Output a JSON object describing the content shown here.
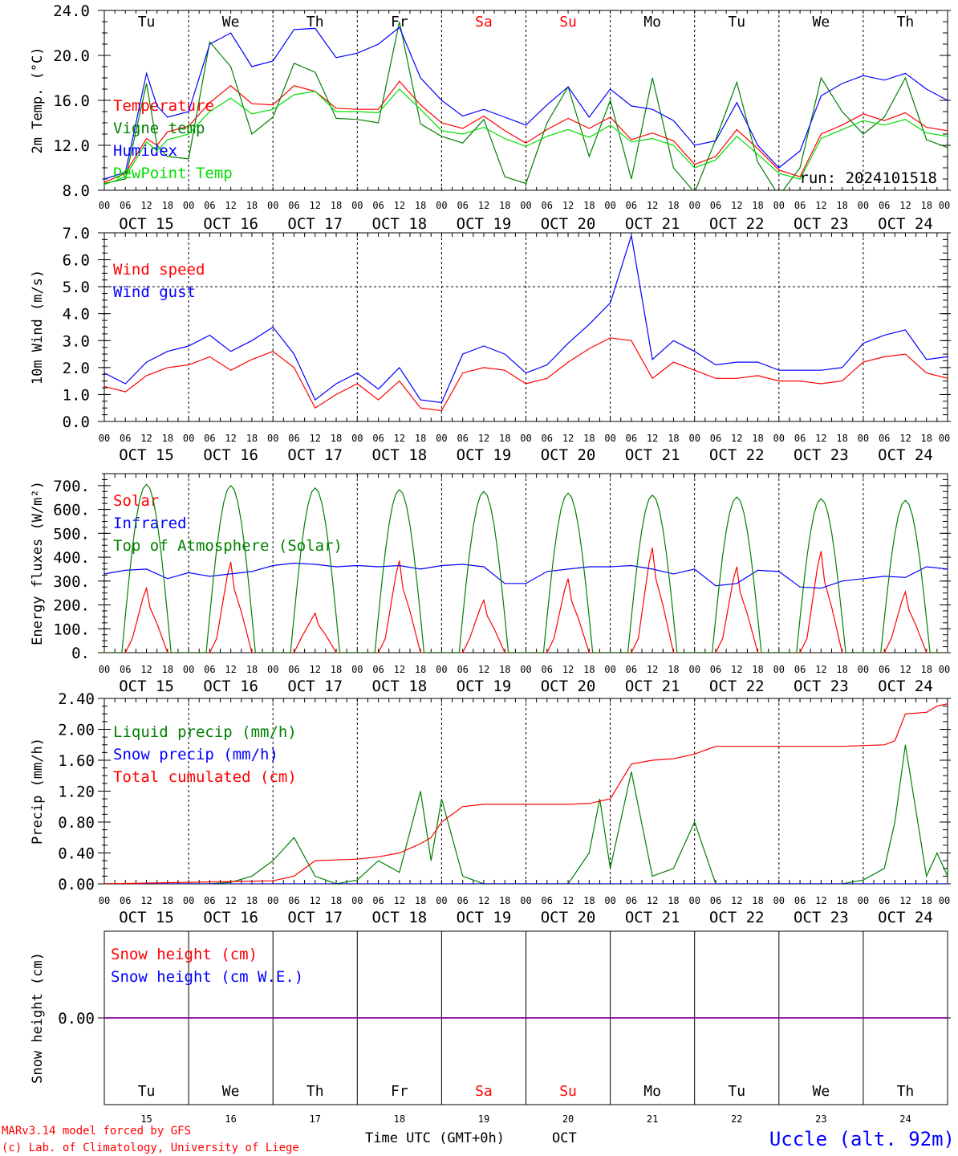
{
  "colors": {
    "red": "#ff0000",
    "green": "#008000",
    "blue": "#0000ff",
    "lime": "#00dd00",
    "purple": "#8000a0",
    "black": "#000000"
  },
  "days": [
    {
      "abbr": "Tu",
      "date": "OCT 15",
      "num": "15",
      "weekend": false
    },
    {
      "abbr": "We",
      "date": "OCT 16",
      "num": "16",
      "weekend": false
    },
    {
      "abbr": "Th",
      "date": "OCT 17",
      "num": "17",
      "weekend": false
    },
    {
      "abbr": "Fr",
      "date": "OCT 18",
      "num": "18",
      "weekend": false
    },
    {
      "abbr": "Sa",
      "date": "OCT 19",
      "num": "19",
      "weekend": true
    },
    {
      "abbr": "Su",
      "date": "OCT 20",
      "num": "20",
      "weekend": true
    },
    {
      "abbr": "Mo",
      "date": "OCT 21",
      "num": "21",
      "weekend": false
    },
    {
      "abbr": "Tu",
      "date": "OCT 22",
      "num": "22",
      "weekend": false
    },
    {
      "abbr": "We",
      "date": "OCT 23",
      "num": "23",
      "weekend": false
    },
    {
      "abbr": "Th",
      "date": "OCT 24",
      "num": "24",
      "weekend": false
    }
  ],
  "hour_ticks": [
    "00",
    "06",
    "12",
    "18"
  ],
  "run_label": "run: 2024101518",
  "footer": {
    "model": "MARv3.14 model forced by GFS",
    "lab": "(c) Lab. of Climatology, University of Liege",
    "xlabel": "Time UTC (GMT+0h)",
    "month": "OCT",
    "station": "Uccle (alt. 92m)"
  },
  "chart_data": [
    {
      "type": "line",
      "ylabel": "2m Temp. (°C)",
      "ylim": [
        8,
        24
      ],
      "yticks": [
        "8.0",
        "12.0",
        "16.0",
        "20.0",
        "24.0"
      ],
      "x_unit": "hours since OCT 15 00 UTC",
      "series": [
        {
          "name": "Temperature",
          "color": "red",
          "x": [
            0,
            6,
            12,
            15,
            18,
            24,
            30,
            36,
            42,
            48,
            54,
            60,
            66,
            72,
            78,
            84,
            90,
            96,
            102,
            108,
            114,
            120,
            126,
            132,
            138,
            144,
            150,
            156,
            162,
            168,
            174,
            180,
            186,
            192,
            198,
            204,
            210,
            216,
            222,
            228,
            234,
            240
          ],
          "y": [
            8.7,
            9.5,
            12.6,
            12.0,
            13.2,
            13.7,
            15.8,
            17.3,
            15.7,
            15.6,
            17.3,
            16.8,
            15.3,
            15.2,
            15.2,
            17.7,
            15.6,
            14.0,
            13.5,
            14.6,
            13.3,
            12.2,
            13.4,
            14.4,
            13.5,
            14.5,
            12.5,
            13.1,
            12.4,
            10.3,
            11.0,
            13.4,
            11.7,
            9.8,
            9.2,
            13.0,
            13.8,
            14.8,
            14.2,
            14.9,
            13.6,
            13.3
          ]
        },
        {
          "name": "Vigne temp",
          "color": "green",
          "x": [
            0,
            6,
            12,
            15,
            18,
            24,
            30,
            36,
            42,
            48,
            54,
            60,
            66,
            72,
            78,
            84,
            90,
            96,
            102,
            108,
            114,
            120,
            126,
            132,
            138,
            144,
            150,
            156,
            162,
            168,
            174,
            180,
            186,
            192,
            198,
            204,
            210,
            216,
            222,
            228,
            234,
            240
          ],
          "y": [
            8.6,
            9.0,
            17.5,
            12.0,
            11.0,
            10.8,
            21.2,
            19.0,
            13.0,
            14.5,
            19.3,
            18.5,
            14.4,
            14.3,
            14.0,
            23.0,
            13.9,
            12.8,
            12.2,
            14.3,
            9.2,
            8.6,
            14.0,
            17.2,
            11.0,
            16.0,
            9.0,
            18.0,
            10.0,
            7.8,
            12.5,
            17.6,
            10.5,
            7.5,
            10.0,
            18.0,
            15.0,
            13.0,
            14.5,
            18.0,
            12.5,
            11.8
          ]
        },
        {
          "name": "Humidex",
          "color": "blue",
          "x": [
            0,
            6,
            12,
            15,
            18,
            24,
            30,
            36,
            42,
            48,
            54,
            60,
            66,
            72,
            78,
            84,
            90,
            96,
            102,
            108,
            114,
            120,
            126,
            132,
            138,
            144,
            150,
            156,
            162,
            168,
            174,
            180,
            186,
            192,
            198,
            204,
            210,
            216,
            222,
            228,
            234,
            240
          ],
          "y": [
            9.0,
            9.6,
            18.4,
            15.5,
            14.5,
            15.0,
            21.0,
            22.0,
            19.0,
            19.5,
            22.3,
            22.4,
            19.8,
            20.2,
            21.0,
            22.5,
            18.0,
            16.0,
            14.6,
            15.2,
            14.5,
            13.8,
            15.6,
            17.2,
            14.5,
            17.0,
            15.5,
            15.2,
            14.2,
            12.0,
            12.4,
            15.8,
            12.0,
            10.0,
            11.5,
            16.4,
            17.5,
            18.2,
            17.8,
            18.4,
            17.0,
            16.0
          ]
        },
        {
          "name": "DewPoint Temp",
          "color": "lime",
          "x": [
            0,
            6,
            12,
            15,
            18,
            24,
            30,
            36,
            42,
            48,
            54,
            60,
            66,
            72,
            78,
            84,
            90,
            96,
            102,
            108,
            114,
            120,
            126,
            132,
            138,
            144,
            150,
            156,
            162,
            168,
            174,
            180,
            186,
            192,
            198,
            204,
            210,
            216,
            222,
            228,
            234,
            240
          ],
          "y": [
            8.5,
            9.2,
            12.3,
            11.5,
            12.5,
            13.0,
            15.0,
            16.2,
            14.8,
            15.2,
            16.5,
            16.8,
            15.0,
            15.0,
            14.9,
            17.0,
            15.2,
            13.3,
            13.0,
            13.6,
            12.6,
            11.9,
            12.8,
            13.4,
            12.7,
            13.8,
            12.3,
            12.6,
            12.0,
            10.0,
            10.7,
            12.8,
            11.2,
            9.5,
            9.0,
            12.6,
            13.4,
            14.2,
            13.8,
            14.3,
            13.1,
            12.8
          ]
        }
      ]
    },
    {
      "type": "line",
      "ylabel": "10m Wind (m/s)",
      "ylim": [
        0,
        7
      ],
      "yticks": [
        "0.0",
        "1.0",
        "2.0",
        "3.0",
        "4.0",
        "5.0",
        "6.0",
        "7.0"
      ],
      "dashed_y": 5.0,
      "series": [
        {
          "name": "Wind speed",
          "color": "red",
          "x": [
            0,
            6,
            12,
            18,
            24,
            30,
            36,
            42,
            48,
            54,
            60,
            66,
            72,
            78,
            84,
            90,
            96,
            102,
            108,
            114,
            120,
            126,
            132,
            138,
            144,
            150,
            156,
            162,
            168,
            174,
            180,
            186,
            192,
            198,
            204,
            210,
            216,
            222,
            228,
            234,
            240
          ],
          "y": [
            1.3,
            1.1,
            1.7,
            2.0,
            2.1,
            2.4,
            1.9,
            2.3,
            2.6,
            2.0,
            0.5,
            1.0,
            1.4,
            0.8,
            1.5,
            0.5,
            0.4,
            1.8,
            2.0,
            1.9,
            1.4,
            1.6,
            2.2,
            2.7,
            3.1,
            3.0,
            1.6,
            2.2,
            1.9,
            1.6,
            1.6,
            1.7,
            1.5,
            1.5,
            1.4,
            1.5,
            2.2,
            2.4,
            2.5,
            1.8,
            1.6
          ]
        },
        {
          "name": "Wind gust",
          "color": "blue",
          "x": [
            0,
            6,
            12,
            18,
            24,
            30,
            36,
            42,
            48,
            54,
            60,
            66,
            72,
            78,
            84,
            90,
            96,
            102,
            108,
            114,
            120,
            126,
            132,
            138,
            144,
            150,
            156,
            162,
            168,
            174,
            180,
            186,
            192,
            198,
            204,
            210,
            216,
            222,
            228,
            234,
            240
          ],
          "y": [
            1.8,
            1.4,
            2.2,
            2.6,
            2.8,
            3.2,
            2.6,
            3.0,
            3.5,
            2.5,
            0.8,
            1.4,
            1.8,
            1.2,
            2.0,
            0.8,
            0.7,
            2.5,
            2.8,
            2.5,
            1.8,
            2.1,
            2.9,
            3.6,
            4.4,
            6.9,
            2.3,
            3.0,
            2.6,
            2.1,
            2.2,
            2.2,
            1.9,
            1.9,
            1.9,
            2.0,
            2.9,
            3.2,
            3.4,
            2.3,
            2.4
          ]
        }
      ]
    },
    {
      "type": "line",
      "ylabel": "Energy fluxes (W/m²)",
      "ylim": [
        0,
        750
      ],
      "yticks": [
        "0.",
        "100.",
        "200.",
        "300.",
        "400.",
        "500.",
        "600.",
        "700."
      ],
      "series": [
        {
          "name": "Solar",
          "color": "red",
          "peaks": [
            270,
            380,
            165,
            385,
            220,
            310,
            440,
            360,
            425,
            255
          ]
        },
        {
          "name": "Infrared",
          "color": "blue",
          "x": [
            0,
            6,
            12,
            18,
            24,
            30,
            36,
            42,
            48,
            54,
            60,
            66,
            72,
            78,
            84,
            90,
            96,
            102,
            108,
            114,
            120,
            126,
            132,
            138,
            144,
            150,
            156,
            162,
            168,
            174,
            180,
            186,
            192,
            198,
            204,
            210,
            216,
            222,
            228,
            234,
            240
          ],
          "y": [
            330,
            345,
            350,
            310,
            335,
            320,
            330,
            340,
            365,
            375,
            370,
            360,
            365,
            360,
            365,
            350,
            365,
            370,
            360,
            290,
            290,
            340,
            350,
            360,
            360,
            365,
            350,
            330,
            350,
            280,
            290,
            345,
            340,
            275,
            270,
            300,
            310,
            320,
            315,
            360,
            350
          ]
        },
        {
          "name": "Top of Atmosphere (Solar)",
          "color": "green",
          "peaks": [
            705,
            700,
            690,
            683,
            675,
            668,
            660,
            652,
            645,
            638
          ]
        }
      ]
    },
    {
      "type": "line",
      "ylabel": "Precip (mm/h)",
      "ylim": [
        0,
        2.4
      ],
      "yticks": [
        "0.00",
        "0.40",
        "0.80",
        "1.20",
        "1.60",
        "2.00",
        "2.40"
      ],
      "series": [
        {
          "name": "Liquid precip (mm/h)",
          "color": "green",
          "x": [
            0,
            12,
            24,
            30,
            36,
            42,
            48,
            54,
            60,
            66,
            72,
            78,
            84,
            90,
            93,
            96,
            102,
            108,
            114,
            120,
            126,
            132,
            138,
            141,
            144,
            150,
            156,
            162,
            168,
            174,
            180,
            186,
            192,
            198,
            204,
            210,
            216,
            222,
            225,
            228,
            234,
            237,
            240
          ],
          "y": [
            0,
            0,
            0,
            0,
            0.02,
            0.1,
            0.3,
            0.6,
            0.1,
            0,
            0.05,
            0.3,
            0.15,
            1.2,
            0.3,
            1.1,
            0.1,
            0,
            0,
            0,
            0,
            0,
            0.4,
            1.1,
            0.2,
            1.45,
            0.1,
            0.2,
            0.8,
            0,
            0,
            0,
            0,
            0,
            0,
            0,
            0.05,
            0.2,
            0.8,
            1.8,
            0.1,
            0.4,
            0.1
          ]
        },
        {
          "name": "Snow precip (mm/h)",
          "color": "blue",
          "x": [
            0,
            240
          ],
          "y": [
            0,
            0
          ]
        },
        {
          "name": "Total cumulated (cm)",
          "color": "red",
          "x": [
            0,
            24,
            36,
            48,
            54,
            60,
            66,
            72,
            78,
            84,
            90,
            93,
            96,
            102,
            108,
            114,
            120,
            126,
            132,
            138,
            144,
            150,
            156,
            162,
            168,
            174,
            180,
            186,
            192,
            198,
            204,
            210,
            216,
            222,
            225,
            228,
            234,
            237,
            240
          ],
          "y": [
            0,
            0.02,
            0.03,
            0.04,
            0.1,
            0.3,
            0.31,
            0.32,
            0.35,
            0.4,
            0.52,
            0.6,
            0.8,
            1.0,
            1.03,
            1.03,
            1.03,
            1.03,
            1.03,
            1.04,
            1.1,
            1.55,
            1.6,
            1.62,
            1.68,
            1.78,
            1.78,
            1.78,
            1.78,
            1.78,
            1.78,
            1.78,
            1.79,
            1.8,
            1.85,
            2.2,
            2.22,
            2.3,
            2.33
          ]
        }
      ]
    },
    {
      "type": "line",
      "ylabel": "Snow height (cm)",
      "yticks": [
        "0.00"
      ],
      "series": [
        {
          "name": "Snow height (cm)",
          "color": "red",
          "x": [
            0,
            240
          ],
          "y": [
            0,
            0
          ]
        },
        {
          "name": "Snow height (cm W.E.)",
          "color": "blue",
          "x": [
            0,
            240
          ],
          "y": [
            0,
            0
          ]
        }
      ]
    }
  ]
}
